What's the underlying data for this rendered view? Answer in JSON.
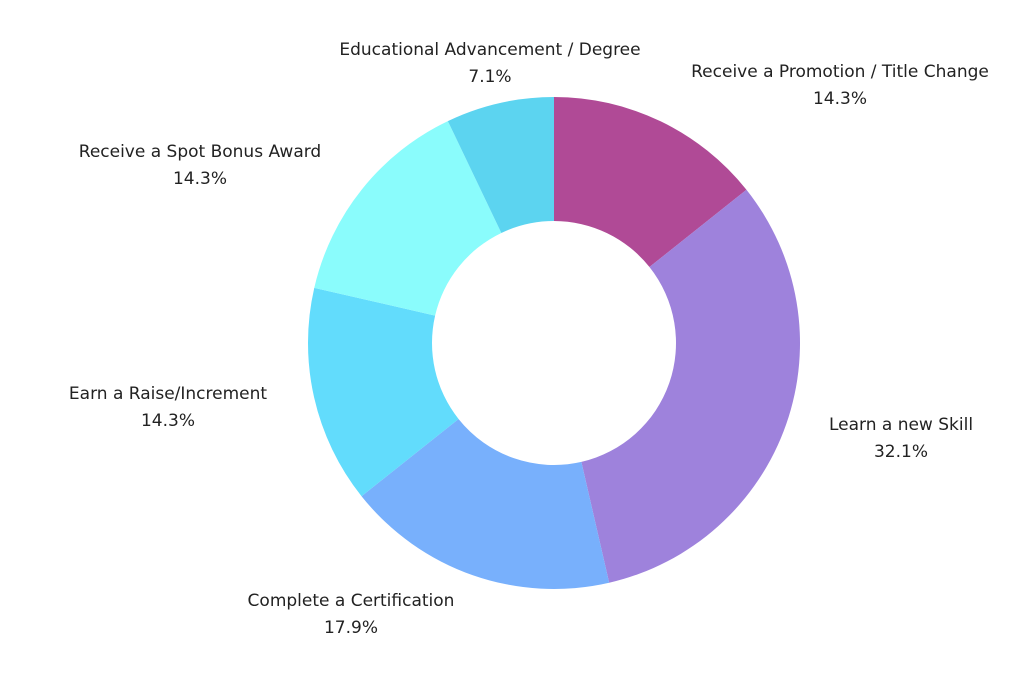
{
  "chart_data": {
    "type": "donut",
    "categories": [
      "Receive a Promotion / Title Change",
      "Learn a new Skill",
      "Complete a Certification",
      "Earn a Raise/Increment",
      "Receive a Spot Bonus Award",
      "Educational Advancement / Degree"
    ],
    "values": [
      14.3,
      32.1,
      17.9,
      14.3,
      14.3,
      7.1
    ],
    "value_labels": [
      "14.3%",
      "32.1%",
      "17.9%",
      "14.3%",
      "14.3%",
      "7.1%"
    ],
    "colors": [
      "#b04a96",
      "#9e82dc",
      "#78b0fc",
      "#62dcfc",
      "#8afcfc",
      "#5cd4f0"
    ]
  }
}
